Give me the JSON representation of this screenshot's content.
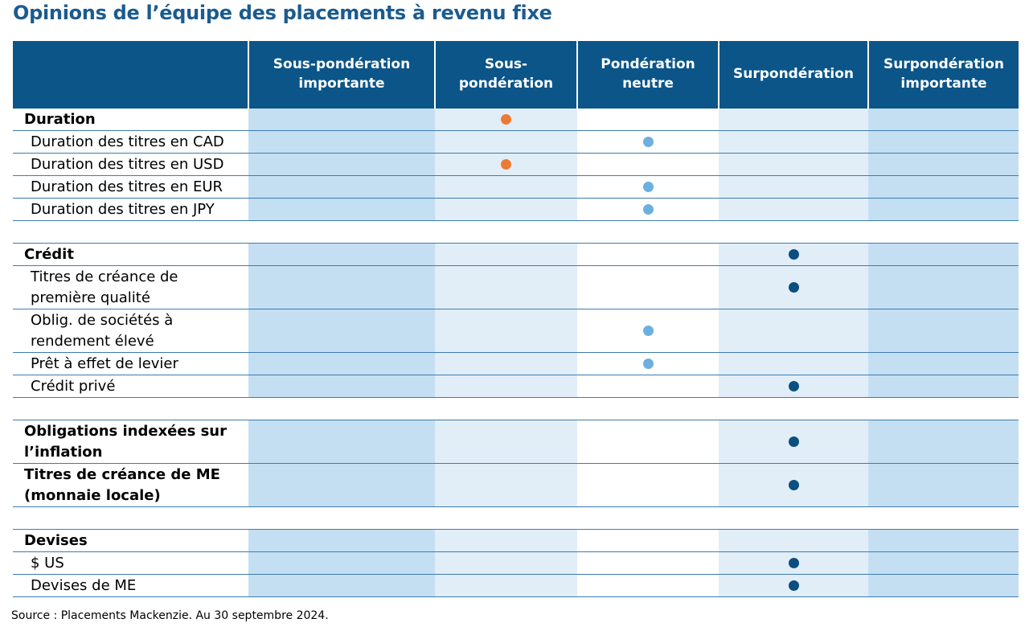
{
  "title": "Opinions de l’équipe des placements à revenu fixe",
  "colors": {
    "header_bg": "#0b5589",
    "title": "#1b5b8f",
    "underweight_dot": "#ec7a34",
    "neutral_dot": "#6cb0e0",
    "overweight_dot": "#0b4f80",
    "column_dark": "#c4dff2",
    "column_light": "#e1eef8"
  },
  "columns": [
    "Sous-pondération importante",
    "Sous-pondération",
    "Pondération neutre",
    "Surpondération",
    "Surpondération importante"
  ],
  "rows": [
    {
      "label": "Duration",
      "bold": true,
      "position": 1,
      "dot": "underweight_dot"
    },
    {
      "label": "Duration des titres en CAD",
      "bold": false,
      "position": 2,
      "dot": "neutral_dot"
    },
    {
      "label": "Duration des titres en USD",
      "bold": false,
      "position": 1,
      "dot": "underweight_dot"
    },
    {
      "label": "Duration des titres en EUR",
      "bold": false,
      "position": 2,
      "dot": "neutral_dot"
    },
    {
      "label": "Duration des titres en JPY",
      "bold": false,
      "position": 2,
      "dot": "neutral_dot"
    },
    {
      "spacer": true
    },
    {
      "label": "Crédit",
      "bold": true,
      "position": 3,
      "dot": "overweight_dot"
    },
    {
      "label": "Titres de créance de première qualité",
      "bold": false,
      "position": 3,
      "dot": "overweight_dot"
    },
    {
      "label": "Oblig. de sociétés à rendement élevé",
      "bold": false,
      "position": 2,
      "dot": "neutral_dot"
    },
    {
      "label": "Prêt à effet de levier",
      "bold": false,
      "position": 2,
      "dot": "neutral_dot"
    },
    {
      "label": "Crédit privé",
      "bold": false,
      "position": 3,
      "dot": "overweight_dot"
    },
    {
      "spacer": true
    },
    {
      "label": "Obligations indexées sur l’inflation",
      "bold": true,
      "position": 3,
      "dot": "overweight_dot"
    },
    {
      "label": "Titres de créance de ME (monnaie locale)",
      "bold": true,
      "position": 3,
      "dot": "overweight_dot"
    },
    {
      "spacer": true
    },
    {
      "label": "Devises",
      "bold": true,
      "position": null,
      "dot": null
    },
    {
      "label": "$ US",
      "bold": false,
      "position": 3,
      "dot": "overweight_dot"
    },
    {
      "label": "Devises de ME",
      "bold": false,
      "position": 3,
      "dot": "overweight_dot"
    }
  ],
  "source": "Source : Placements Mackenzie. Au 30 septembre 2024."
}
